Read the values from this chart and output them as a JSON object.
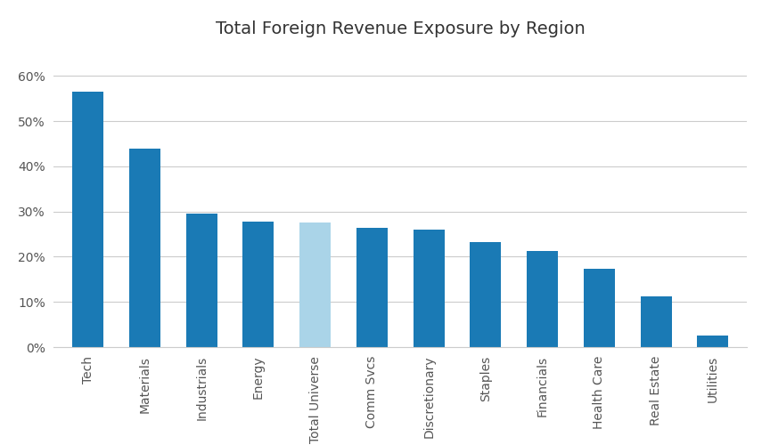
{
  "title": "Total Foreign Revenue Exposure by Region",
  "categories": [
    "Tech",
    "Materials",
    "Industrials",
    "Energy",
    "Total Universe",
    "Comm Svcs",
    "Discretionary",
    "Staples",
    "Financials",
    "Health Care",
    "Real Estate",
    "Utilities"
  ],
  "values": [
    0.565,
    0.44,
    0.295,
    0.278,
    0.275,
    0.264,
    0.26,
    0.233,
    0.213,
    0.173,
    0.113,
    0.025
  ],
  "bar_colors": [
    "#1a7ab5",
    "#1a7ab5",
    "#1a7ab5",
    "#1a7ab5",
    "#aad4e8",
    "#1a7ab5",
    "#1a7ab5",
    "#1a7ab5",
    "#1a7ab5",
    "#1a7ab5",
    "#1a7ab5",
    "#1a7ab5"
  ],
  "ylim": [
    0,
    0.65
  ],
  "yticks": [
    0.0,
    0.1,
    0.2,
    0.3,
    0.4,
    0.5,
    0.6
  ],
  "ytick_labels": [
    "0%",
    "10%",
    "20%",
    "30%",
    "40%",
    "50%",
    "60%"
  ],
  "background_color": "#ffffff",
  "grid_color": "#cccccc",
  "title_fontsize": 14,
  "tick_fontsize": 10,
  "bar_width": 0.55
}
